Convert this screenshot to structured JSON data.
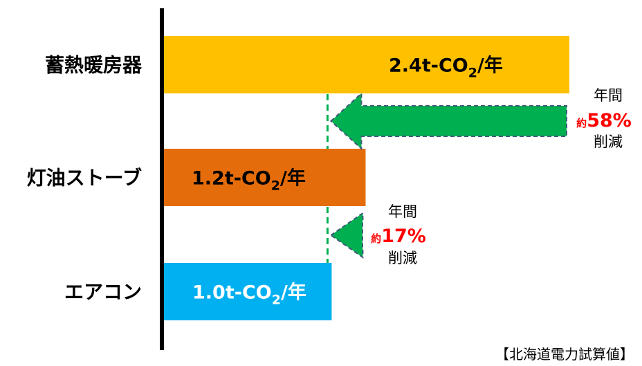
{
  "chart_data": {
    "type": "bar",
    "orientation": "horizontal",
    "categories": [
      "蓄熱暖房器",
      "灯油ストーブ",
      "エアコン"
    ],
    "values": [
      2.4,
      1.2,
      1.0
    ],
    "unit": "t-CO2/年",
    "value_labels": [
      {
        "main": "2.4t-CO",
        "sub": "2",
        "suffix": "/年"
      },
      {
        "main": "1.2t-CO",
        "sub": "2",
        "suffix": "/年"
      },
      {
        "main": "1.0t-CO",
        "sub": "2",
        "suffix": "/年"
      }
    ],
    "colors": [
      "#FFC000",
      "#E46C0A",
      "#00B0F0"
    ],
    "label_colors": [
      "#000000",
      "#000000",
      "#ffffff"
    ],
    "xlim": [
      0,
      2.4
    ],
    "annotations": [
      {
        "top": "年間",
        "yaku": "約",
        "percent": "58%",
        "bottom": "削減",
        "from": 2.4,
        "to": 1.0
      },
      {
        "top": "年間",
        "yaku": "約",
        "percent": "17%",
        "bottom": "削減",
        "from": 1.2,
        "to": 1.0
      }
    ],
    "arrow_color": "#00B050",
    "accent_color": "#FF0000",
    "source_note": "【北海道電力試算値】"
  }
}
